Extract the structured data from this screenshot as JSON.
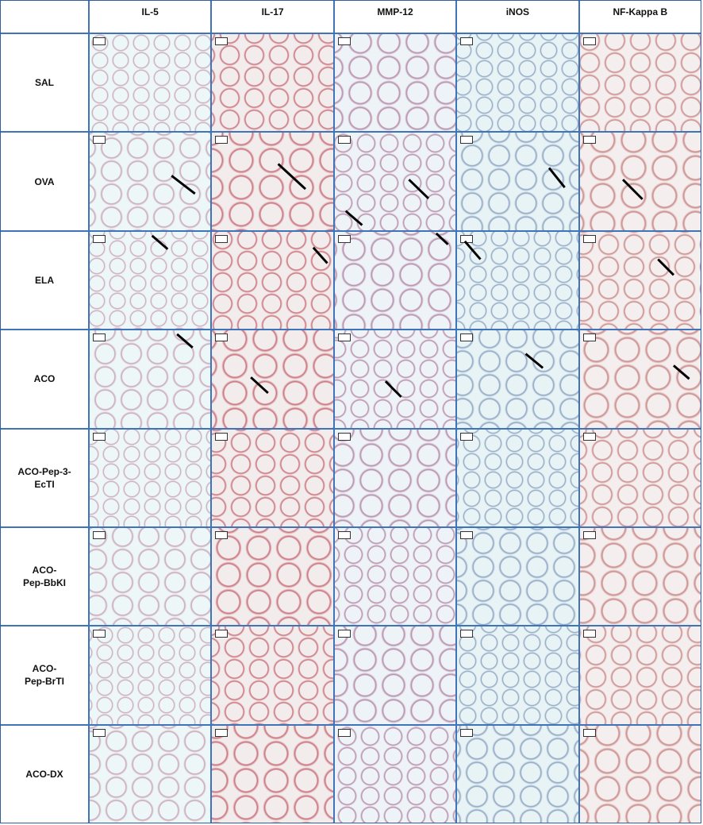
{
  "table": {
    "columns": [
      "IL-5",
      "IL-17",
      "MMP-12",
      "iNOS",
      "NF-Kappa B"
    ],
    "rows": [
      "SAL",
      "OVA",
      "ELA",
      "ACO",
      "ACO-Pep-3-\nEcTI",
      "ACO-\nPep-BbKI",
      "ACO-\nPep-BrTI",
      "ACO-DX"
    ]
  }
}
